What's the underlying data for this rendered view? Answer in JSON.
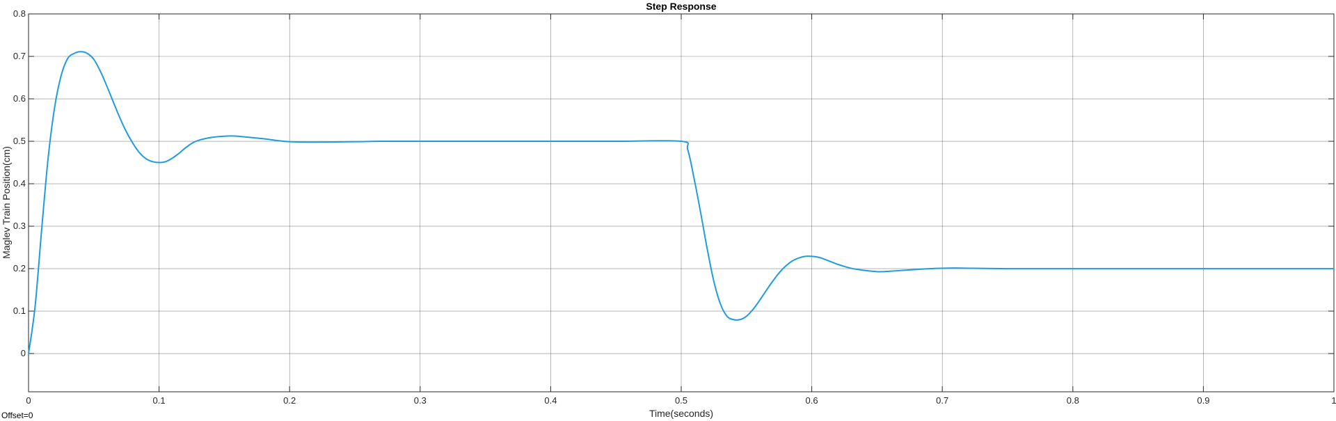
{
  "chart_data": {
    "type": "line",
    "title": "Step Response",
    "xlabel": "Time(seconds)",
    "ylabel": "Maglev Train Position(cm)",
    "xlim": [
      0,
      1
    ],
    "ylim": [
      -0.09,
      0.8
    ],
    "xticks": [
      "0",
      "0.1",
      "0.2",
      "0.3",
      "0.4",
      "0.5",
      "0.6",
      "0.7",
      "0.8",
      "0.9",
      "1"
    ],
    "yticks": [
      "0",
      "0.1",
      "0.2",
      "0.3",
      "0.4",
      "0.5",
      "0.6",
      "0.7",
      "0.8"
    ],
    "grid": true,
    "series": [
      {
        "color": "#1f9be0",
        "x": [
          0,
          0.005,
          0.01,
          0.015,
          0.02,
          0.025,
          0.03,
          0.035,
          0.04,
          0.045,
          0.05,
          0.055,
          0.06,
          0.065,
          0.07,
          0.075,
          0.08,
          0.085,
          0.09,
          0.095,
          0.1,
          0.105,
          0.11,
          0.115,
          0.12,
          0.125,
          0.13,
          0.14,
          0.15,
          0.155,
          0.16,
          0.17,
          0.18,
          0.19,
          0.2,
          0.22,
          0.25,
          0.27,
          0.3,
          0.35,
          0.4,
          0.45,
          0.5,
          0.505,
          0.51,
          0.515,
          0.52,
          0.525,
          0.53,
          0.535,
          0.54,
          0.545,
          0.55,
          0.555,
          0.56,
          0.565,
          0.57,
          0.575,
          0.58,
          0.585,
          0.59,
          0.595,
          0.6,
          0.605,
          0.61,
          0.615,
          0.62,
          0.63,
          0.64,
          0.65,
          0.655,
          0.66,
          0.67,
          0.68,
          0.69,
          0.7,
          0.71,
          0.72,
          0.75,
          0.8,
          0.85,
          0.9,
          0.95,
          1.0
        ],
        "y": [
          0,
          0.11,
          0.29,
          0.46,
          0.58,
          0.655,
          0.695,
          0.707,
          0.711,
          0.707,
          0.693,
          0.665,
          0.63,
          0.592,
          0.555,
          0.522,
          0.495,
          0.473,
          0.459,
          0.452,
          0.45,
          0.452,
          0.46,
          0.471,
          0.484,
          0.495,
          0.502,
          0.509,
          0.512,
          0.5125,
          0.512,
          0.509,
          0.506,
          0.502,
          0.499,
          0.498,
          0.499,
          0.5,
          0.5,
          0.5,
          0.5,
          0.5,
          0.5,
          0.48,
          0.41,
          0.33,
          0.245,
          0.17,
          0.117,
          0.088,
          0.08,
          0.08,
          0.088,
          0.104,
          0.125,
          0.148,
          0.17,
          0.19,
          0.206,
          0.218,
          0.225,
          0.229,
          0.229,
          0.227,
          0.222,
          0.216,
          0.21,
          0.201,
          0.196,
          0.193,
          0.193,
          0.194,
          0.196,
          0.198,
          0.2,
          0.201,
          0.2015,
          0.201,
          0.2,
          0.2,
          0.2,
          0.2,
          0.2,
          0.2
        ]
      }
    ]
  },
  "footer": {
    "offset_text": "Offset=0"
  }
}
